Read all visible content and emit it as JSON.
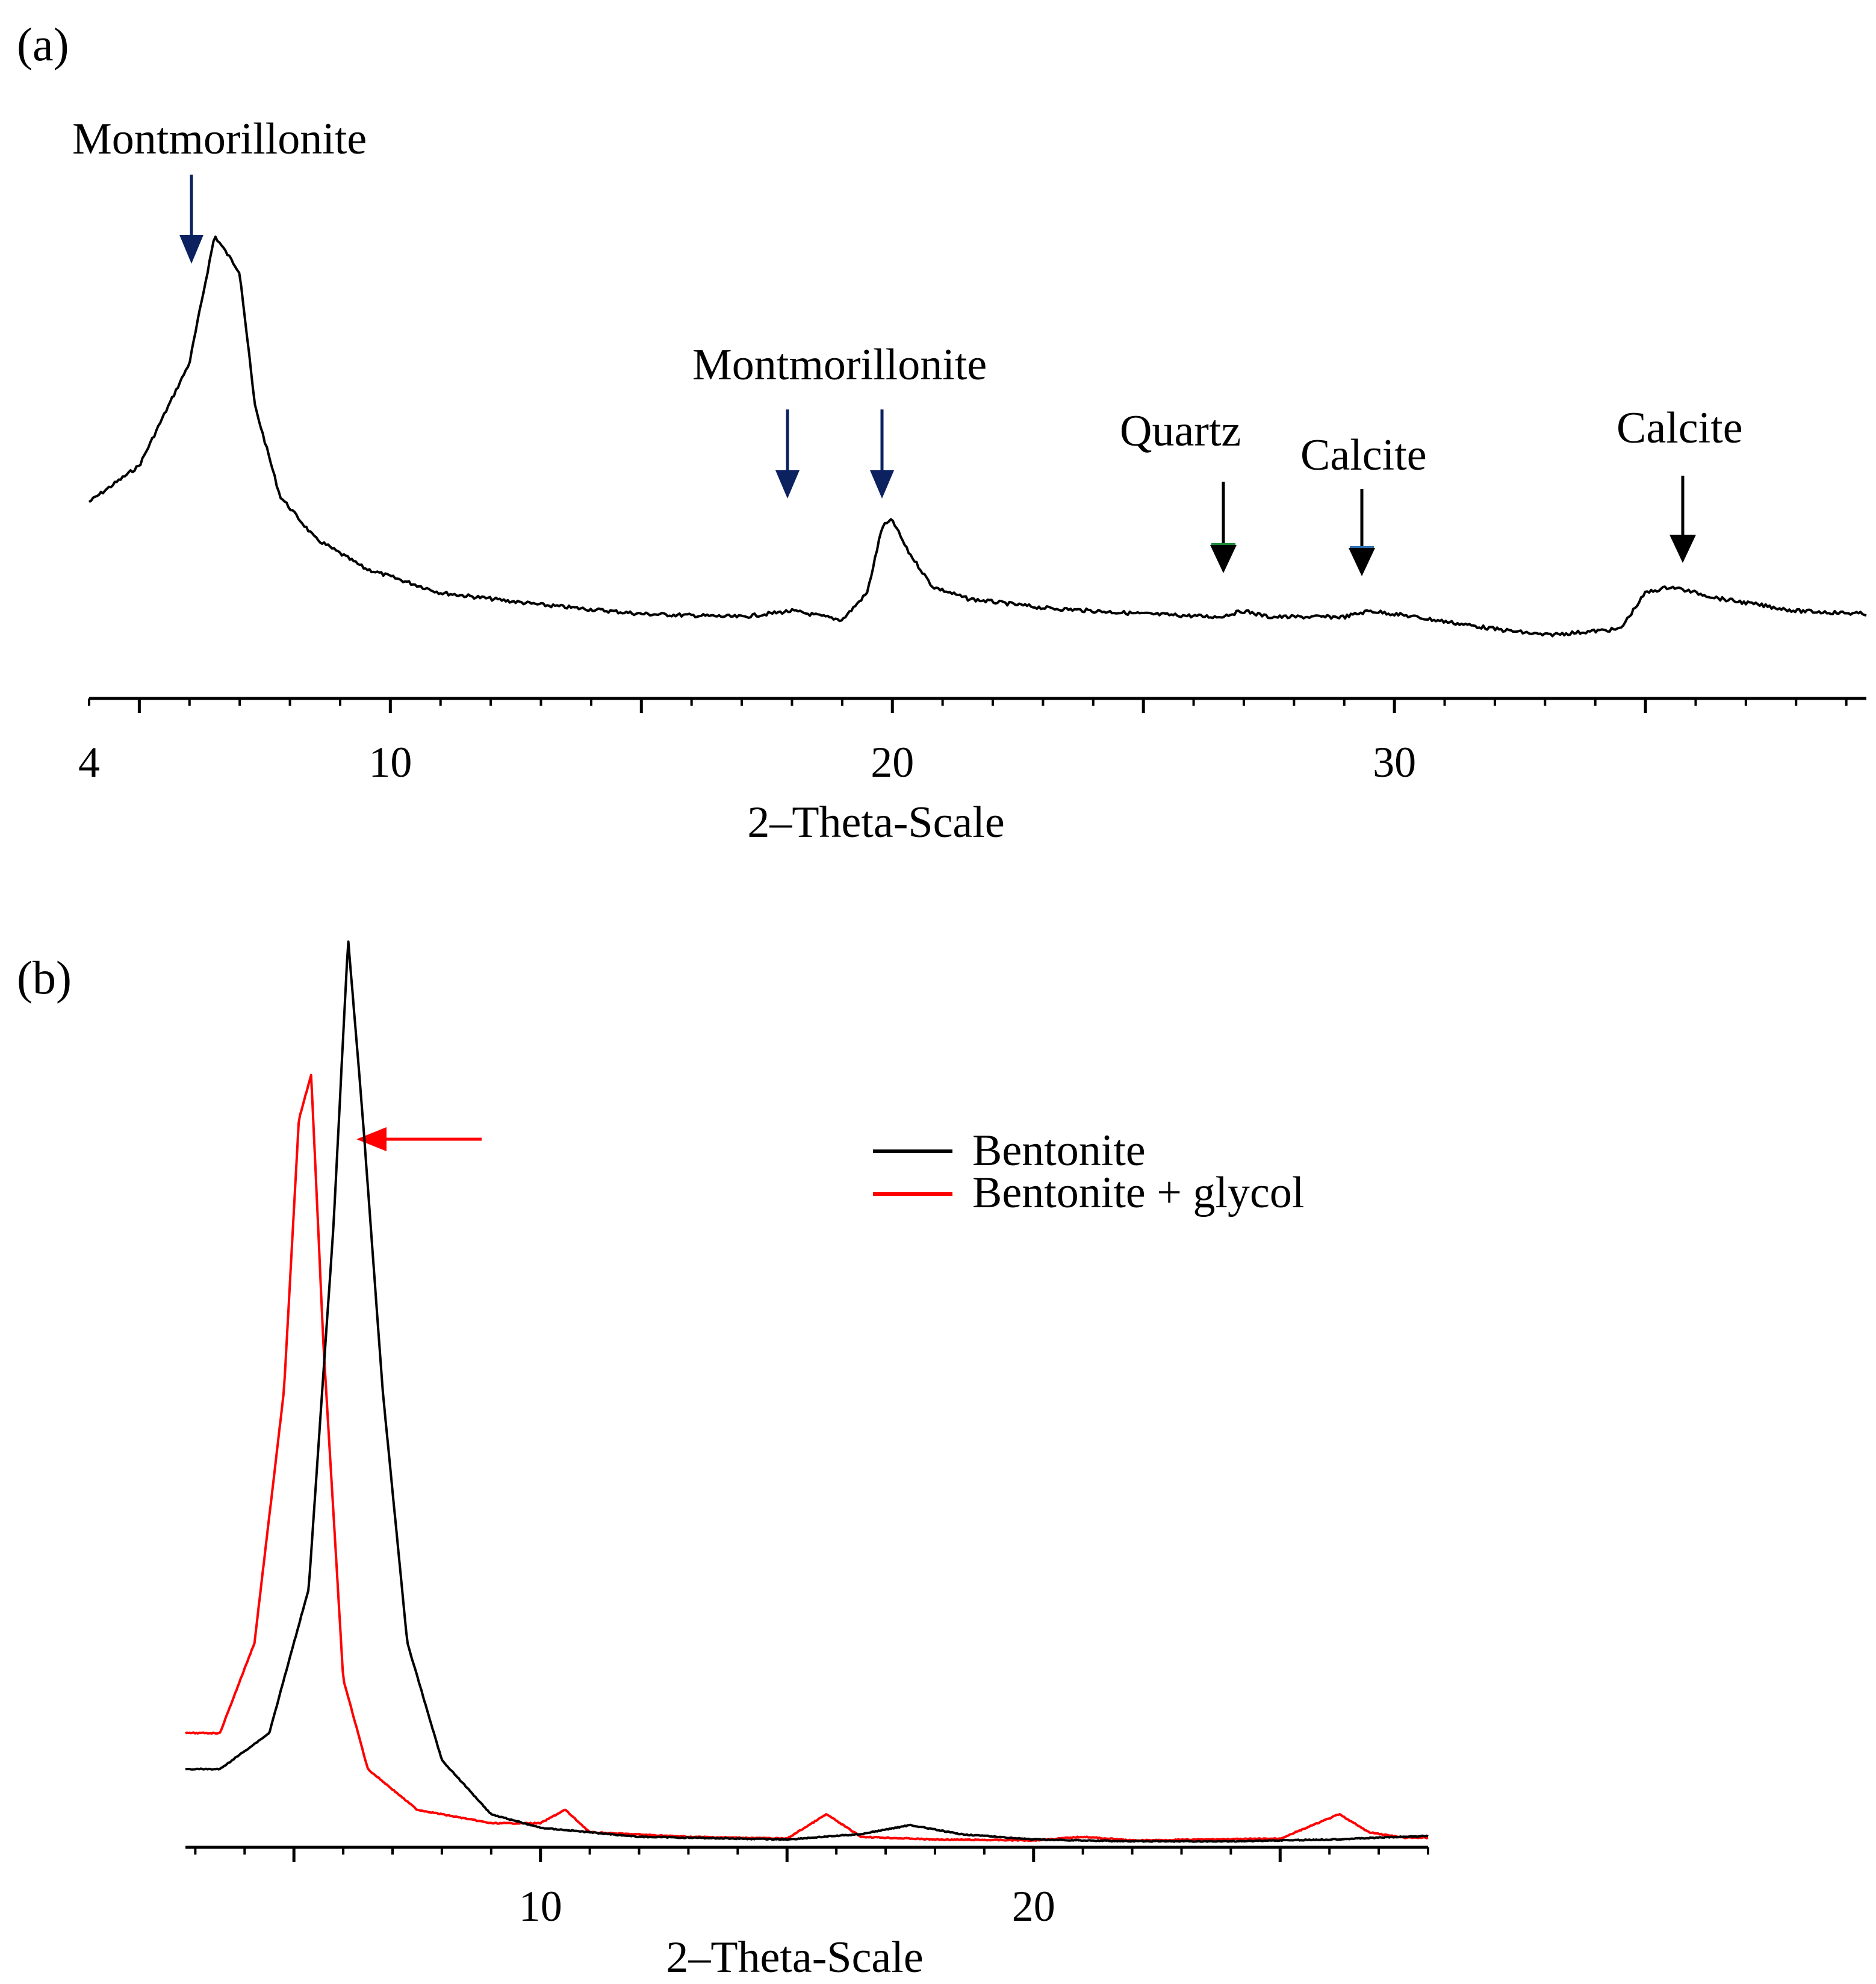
{
  "chart_data": [
    {
      "panel_label": "(a)",
      "type": "line",
      "title": "",
      "xlabel": "2–Theta-Scale",
      "ylabel": "",
      "xlim": [
        4,
        39.4
      ],
      "ylim": [
        0,
        100
      ],
      "grid": false,
      "x_ticks": [
        {
          "value": 4,
          "label": "4"
        },
        {
          "value": 10,
          "label": "10"
        },
        {
          "value": 20,
          "label": "20"
        },
        {
          "value": 30,
          "label": "30"
        }
      ],
      "series": [
        {
          "name": "Bentonite",
          "color": "#000000",
          "x": [
            4.0,
            5.0,
            6.0,
            6.5,
            7.0,
            7.3,
            7.8,
            8.5,
            9.5,
            11,
            13,
            15,
            17,
            18.0,
            19.0,
            19.5,
            19.8,
            20.0,
            20.3,
            20.8,
            21.5,
            23,
            25,
            26.5,
            27.0,
            27.5,
            29,
            29.5,
            30,
            32,
            33,
            34.5,
            35.0,
            35.5,
            36.5,
            38,
            39.4
          ],
          "y": [
            27,
            33,
            50,
            71,
            65,
            43,
            28,
            21,
            16,
            12,
            10,
            8.5,
            8,
            9,
            7.5,
            12,
            23,
            24,
            19,
            13,
            11,
            9.5,
            8.5,
            8,
            9,
            8,
            8,
            9,
            8.5,
            6,
            5,
            6,
            12,
            13,
            11,
            9,
            8.5
          ]
        }
      ],
      "annotations": [
        {
          "text": "Montmorillonite",
          "x": 6.2,
          "arrow_color": "#0b2160"
        },
        {
          "text": "Montmorillonite",
          "x": [
            18.0,
            19.9
          ],
          "arrow_color": "#0b2160"
        },
        {
          "text": "Quartz",
          "x": 26.7,
          "arrow_color": "#000000"
        },
        {
          "text": "Calcite",
          "x": 29.4,
          "arrow_color": "#000000"
        },
        {
          "text": "Calcite",
          "x": 35.7,
          "arrow_color": "#000000"
        }
      ]
    },
    {
      "panel_label": "(b)",
      "type": "line",
      "title": "",
      "xlabel": "2–Theta-Scale",
      "ylabel": "",
      "xlim": [
        2.8,
        28
      ],
      "ylim": [
        0,
        100
      ],
      "grid": false,
      "x_ticks": [
        {
          "value": 10,
          "label": "10"
        },
        {
          "value": 20,
          "label": "20"
        }
      ],
      "legend_position": "upper-right",
      "series": [
        {
          "name": "Bentonite",
          "color": "#000000",
          "x": [
            2.8,
            3.5,
            4.5,
            5.3,
            5.8,
            6.1,
            6.4,
            6.8,
            7.3,
            8.0,
            9.0,
            10,
            12,
            15,
            16.5,
            17.5,
            18.5,
            20,
            22,
            24,
            26,
            28
          ],
          "y": [
            8,
            8,
            12,
            28,
            68,
            100,
            80,
            50,
            22,
            9,
            3,
            1.5,
            0.5,
            0.2,
            0.8,
            1.8,
            0.8,
            0.2,
            0,
            0,
            0.2,
            0.6
          ]
        },
        {
          "name": "Bentonite + glycol",
          "color": "#ff0000",
          "x": [
            2.8,
            3.5,
            4.2,
            4.8,
            5.1,
            5.35,
            5.6,
            6.0,
            6.5,
            7.5,
            9.0,
            10.0,
            10.5,
            11.0,
            13,
            15.0,
            15.8,
            16.5,
            18,
            20,
            21.0,
            22,
            25,
            26.2,
            26.8,
            27.5,
            28
          ],
          "y": [
            12,
            12,
            22,
            50,
            80,
            85,
            55,
            18,
            8,
            3.5,
            2,
            2,
            3.5,
            1,
            0.5,
            0.3,
            3,
            0.5,
            0.2,
            0.1,
            0.5,
            0.1,
            0.3,
            3,
            1,
            0.4,
            0.4
          ]
        }
      ],
      "annotations": [
        {
          "text": "",
          "type": "arrow",
          "points_at_x": 6.2,
          "arrow_color": "#ff0000"
        }
      ]
    }
  ]
}
